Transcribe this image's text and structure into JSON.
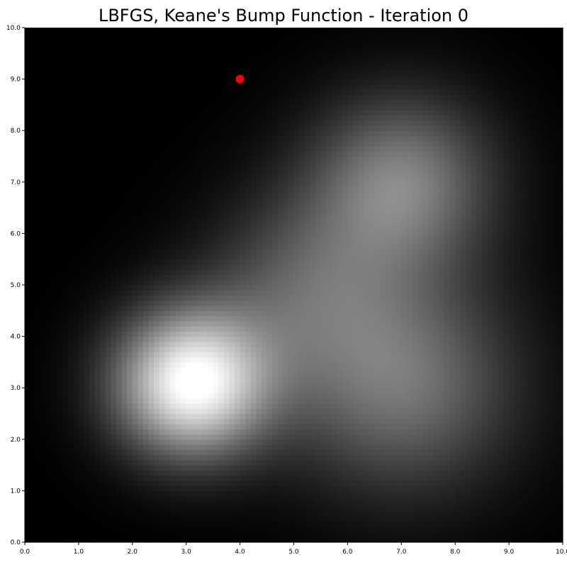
{
  "chart_data": {
    "type": "heatmap",
    "title": "LBFGS, Keane's Bump Function - Iteration 0",
    "xlabel": "",
    "ylabel": "",
    "xlim": [
      0,
      10
    ],
    "ylim": [
      0,
      10
    ],
    "x_ticks": [
      "0.0",
      "1.0",
      "2.0",
      "3.0",
      "4.0",
      "5.0",
      "6.0",
      "7.0",
      "8.0",
      "9.0",
      "10.0"
    ],
    "y_ticks": [
      "0.0",
      "1.0",
      "2.0",
      "3.0",
      "4.0",
      "5.0",
      "6.0",
      "7.0",
      "8.0",
      "9.0",
      "10.0"
    ],
    "grid": false,
    "colormap": "grayscale",
    "colors": {
      "point": "#ff0000",
      "background": "#ffffff",
      "axis": "#000000"
    },
    "heatmap": {
      "resolution": 100,
      "bumps": [
        {
          "x": 3.1,
          "y": 3.1,
          "amplitude": 1.0,
          "sigma": 1.0
        },
        {
          "x": 7.0,
          "y": 7.0,
          "amplitude": 0.5,
          "sigma": 1.2
        },
        {
          "x": 7.0,
          "y": 3.1,
          "amplitude": 0.45,
          "sigma": 1.5
        },
        {
          "x": 5.2,
          "y": 5.0,
          "amplitude": 0.3,
          "sigma": 1.3
        }
      ]
    },
    "points": [
      {
        "x": 4.0,
        "y": 9.0
      }
    ]
  }
}
